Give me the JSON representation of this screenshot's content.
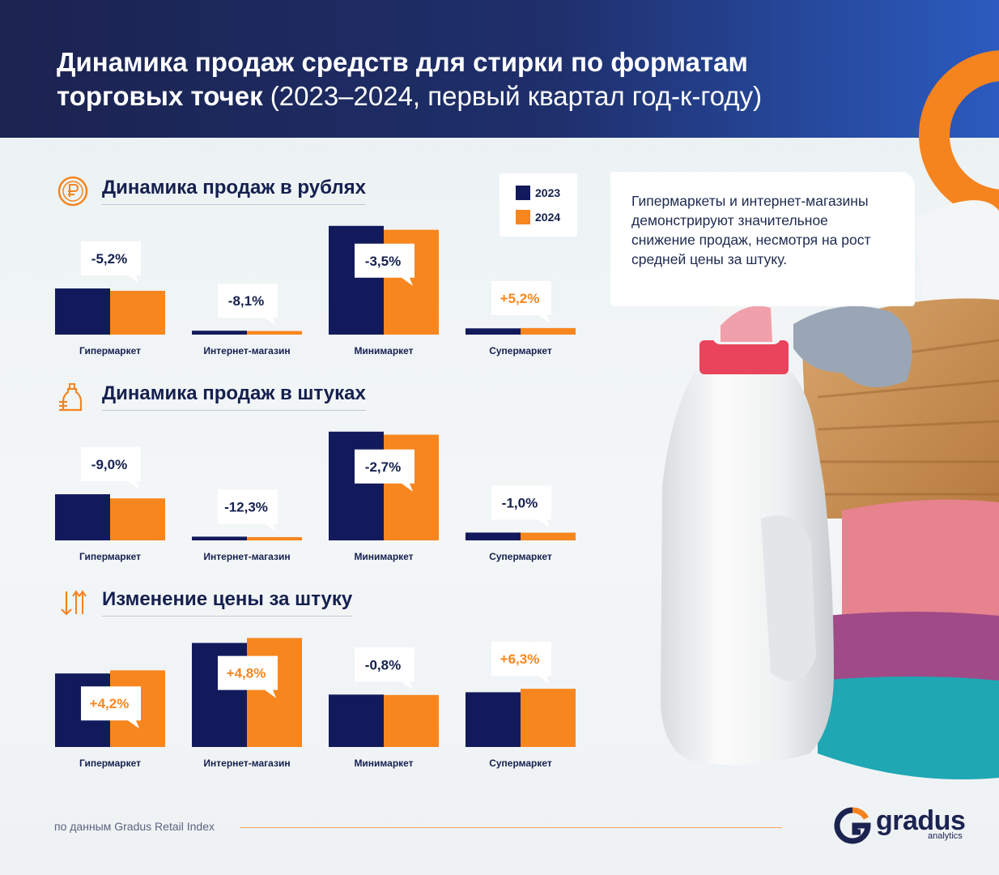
{
  "header": {
    "title_bold": "Динамика продаж средств для стирки по форматам торговых точек",
    "title_light": "(2023–2024, первый квартал год-к-году)"
  },
  "colors": {
    "y2023": "#131a5c",
    "y2024": "#f7861f",
    "positive": "#f7861f",
    "negative": "#15204f"
  },
  "legend": {
    "items": [
      {
        "label": "2023",
        "color": "#131a5c"
      },
      {
        "label": "2024",
        "color": "#f7861f"
      }
    ]
  },
  "note": {
    "text": "Гипермаркеты и интернет-магазины демонстрируют значительное снижение продаж, несмотря на рост средней цены за штуку."
  },
  "sections": [
    {
      "title": "Динамика продаж в рублях",
      "icon": "ruble-coin-icon"
    },
    {
      "title": "Динамика продаж в штуках",
      "icon": "detergent-bottles-icon"
    },
    {
      "title": "Изменение цены за штуку",
      "icon": "price-arrows-icon"
    }
  ],
  "chart_data": [
    {
      "type": "bar",
      "title": "Динамика продаж в рублях",
      "categories": [
        "Гипермаркет",
        "Интернет-магазин",
        "Минимаркет",
        "Супермаркет"
      ],
      "series": [
        {
          "name": "2023",
          "values": [
            59,
            5,
            139,
            8
          ]
        },
        {
          "name": "2024",
          "values": [
            56,
            4.6,
            134,
            8.4
          ]
        }
      ],
      "labels": [
        "-5,2%",
        "-8,1%",
        "-3,5%",
        "+5,2%"
      ],
      "ylim": [
        0,
        145
      ]
    },
    {
      "type": "bar",
      "title": "Динамика продаж в штуках",
      "categories": [
        "Гипермаркет",
        "Интернет-магазин",
        "Минимаркет",
        "Супермаркет"
      ],
      "series": [
        {
          "name": "2023",
          "values": [
            59,
            4.8,
            139,
            10
          ]
        },
        {
          "name": "2024",
          "values": [
            53.7,
            4.2,
            135.2,
            9.9
          ]
        }
      ],
      "labels": [
        "-9,0%",
        "-12,3%",
        "-2,7%",
        "-1,0%"
      ],
      "ylim": [
        0,
        145
      ]
    },
    {
      "type": "bar",
      "title": "Изменение цены за штуку",
      "categories": [
        "Гипермаркет",
        "Интернет-магазин",
        "Минимаркет",
        "Супермаркет"
      ],
      "series": [
        {
          "name": "2023",
          "values": [
            94,
            133,
            67,
            70
          ]
        },
        {
          "name": "2024",
          "values": [
            98,
            139.4,
            66.5,
            74.4
          ]
        }
      ],
      "labels": [
        "+4,2%",
        "+4,8%",
        "-0,8%",
        "+6,3%"
      ],
      "ylim": [
        0,
        145
      ]
    }
  ],
  "footer": {
    "source": "по данным Gradus Retail Index"
  },
  "logo": {
    "word": "gradus",
    "sub": "analytics"
  }
}
